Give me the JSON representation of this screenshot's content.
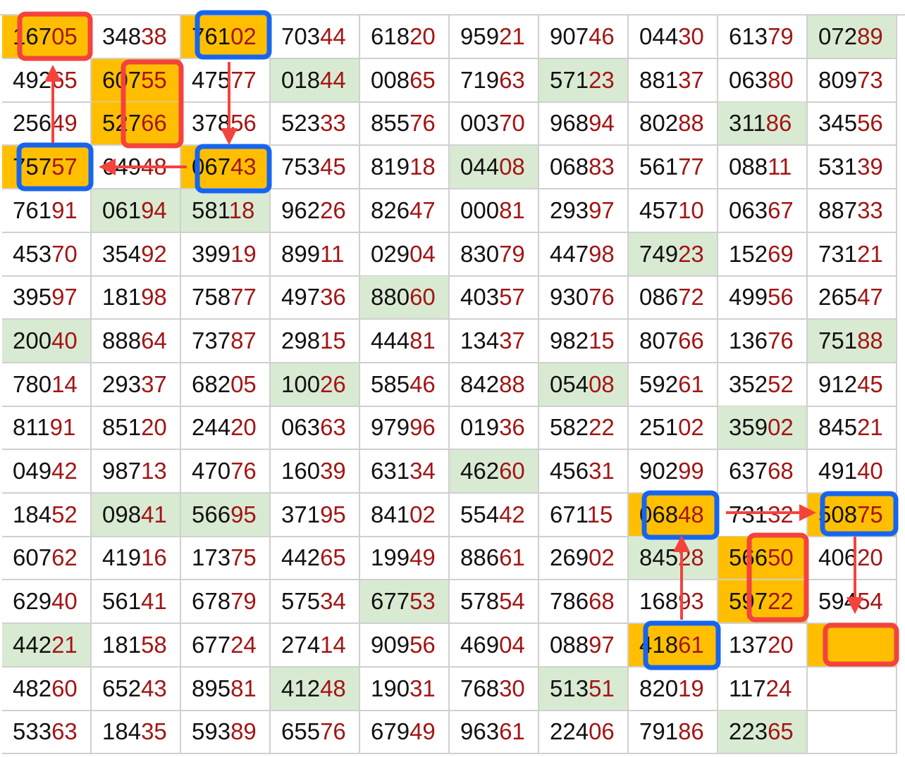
{
  "sheet": {
    "rows": [
      [
        "16705",
        "34838",
        "76102",
        "70344",
        "61820",
        "95921",
        "90746",
        "04430",
        "61379",
        "07289"
      ],
      [
        "49265",
        "60755",
        "47577",
        "01844",
        "00865",
        "71963",
        "57123",
        "88137",
        "06380",
        "80973"
      ],
      [
        "25649",
        "52766",
        "37856",
        "52333",
        "85576",
        "00370",
        "96894",
        "80288",
        "31186",
        "34556"
      ],
      [
        "75757",
        "64948",
        "06743",
        "75345",
        "81918",
        "04408",
        "06883",
        "56177",
        "08811",
        "53139"
      ],
      [
        "76191",
        "06194",
        "58118",
        "96226",
        "82647",
        "00081",
        "29397",
        "45710",
        "06367",
        "88733"
      ],
      [
        "45370",
        "35492",
        "39919",
        "89911",
        "02904",
        "83079",
        "44798",
        "74923",
        "15269",
        "73121"
      ],
      [
        "39597",
        "18198",
        "75877",
        "49736",
        "88060",
        "40357",
        "93076",
        "08672",
        "49956",
        "26547"
      ],
      [
        "20040",
        "88864",
        "73787",
        "29815",
        "44481",
        "13437",
        "98215",
        "80766",
        "13676",
        "75188"
      ],
      [
        "78014",
        "29337",
        "68205",
        "10026",
        "58546",
        "84288",
        "05408",
        "59261",
        "35252",
        "91245"
      ],
      [
        "81191",
        "85120",
        "24420",
        "06363",
        "97996",
        "01936",
        "58222",
        "25102",
        "35902",
        "84521"
      ],
      [
        "04942",
        "98713",
        "47076",
        "16039",
        "63134",
        "46260",
        "45631",
        "90299",
        "63768",
        "49140"
      ],
      [
        "18452",
        "09841",
        "56695",
        "37195",
        "84102",
        "55442",
        "67115",
        "06848",
        "73132",
        "50875"
      ],
      [
        "60762",
        "41916",
        "17375",
        "44265",
        "19949",
        "88661",
        "26902",
        "84528",
        "56650",
        "40620"
      ],
      [
        "62940",
        "56141",
        "67879",
        "57534",
        "67753",
        "57854",
        "78668",
        "16893",
        "59722",
        "59454"
      ],
      [
        "44221",
        "18158",
        "67724",
        "27414",
        "90956",
        "46904",
        "08897",
        "41861",
        "13720",
        ""
      ],
      [
        "48260",
        "65243",
        "89581",
        "41248",
        "19031",
        "76830",
        "51351",
        "82019",
        "11724",
        ""
      ],
      [
        "53363",
        "18435",
        "59389",
        "65576",
        "67949",
        "96361",
        "22406",
        "79186",
        "22365",
        ""
      ]
    ],
    "green_cells": [
      [
        0,
        9
      ],
      [
        1,
        3
      ],
      [
        1,
        6
      ],
      [
        2,
        8
      ],
      [
        3,
        5
      ],
      [
        4,
        1
      ],
      [
        4,
        2
      ],
      [
        5,
        7
      ],
      [
        6,
        4
      ],
      [
        7,
        0
      ],
      [
        7,
        9
      ],
      [
        8,
        3
      ],
      [
        8,
        6
      ],
      [
        9,
        8
      ],
      [
        10,
        5
      ],
      [
        11,
        1
      ],
      [
        11,
        2
      ],
      [
        12,
        7
      ],
      [
        13,
        4
      ],
      [
        14,
        0
      ],
      [
        15,
        3
      ],
      [
        15,
        6
      ],
      [
        16,
        8
      ]
    ],
    "orange_cells": [
      [
        0,
        0
      ],
      [
        0,
        2
      ],
      [
        1,
        1
      ],
      [
        2,
        1
      ],
      [
        3,
        0
      ],
      [
        3,
        2
      ],
      [
        11,
        7
      ],
      [
        11,
        9
      ],
      [
        12,
        8
      ],
      [
        13,
        8
      ],
      [
        14,
        7
      ],
      [
        14,
        9
      ]
    ],
    "colors": {
      "green": "#d9ead3",
      "orange": "#ffbf00",
      "digit_tail": "#a31515",
      "annotation_red": "#f4433c",
      "annotation_blue": "#1565f0"
    }
  }
}
